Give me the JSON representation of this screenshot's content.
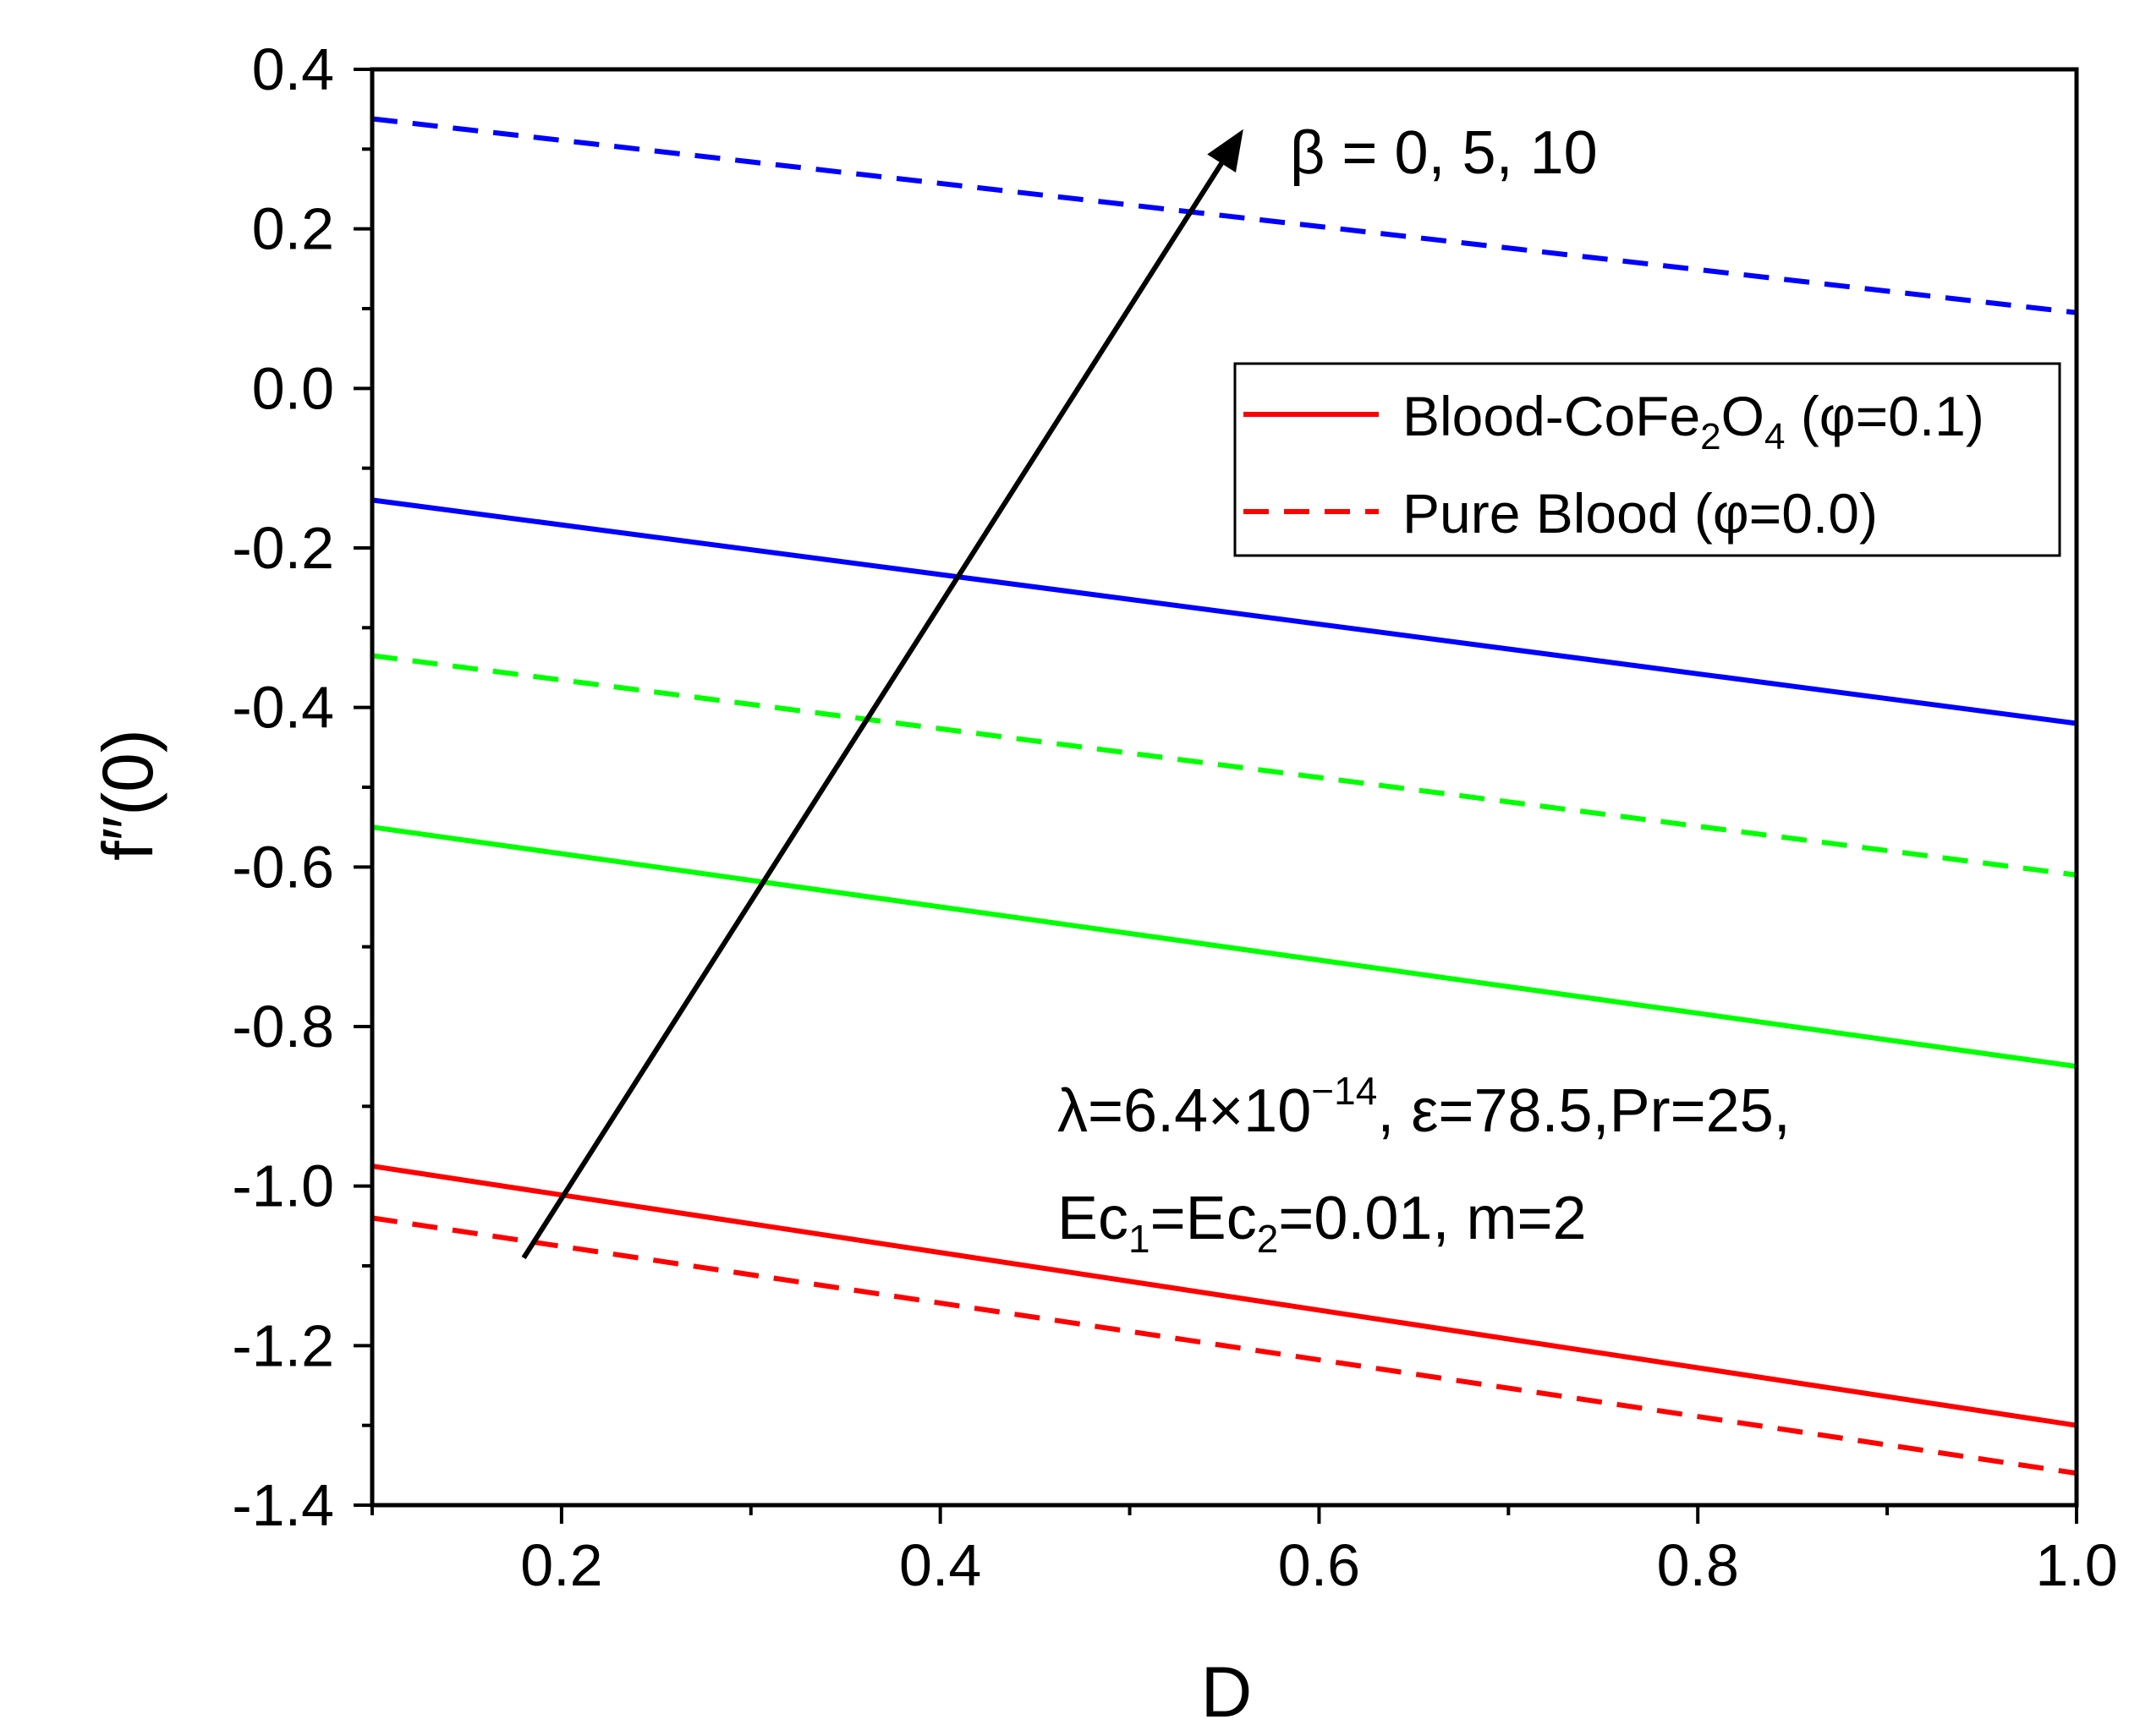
{
  "chart_data": {
    "type": "line",
    "title": "",
    "xlabel": "D",
    "ylabel": "f″(0)",
    "xlim": [
      0.1,
      1.0
    ],
    "ylim": [
      -1.4,
      0.4
    ],
    "xticks": [
      0.2,
      0.4,
      0.6,
      0.8,
      1.0
    ],
    "yticks": [
      0.4,
      0.2,
      0.0,
      -0.2,
      -0.4,
      -0.6,
      -0.8,
      -1.0,
      -1.2,
      -1.4
    ],
    "xtick_labels": [
      "0.2",
      "0.4",
      "0.6",
      "0.8",
      "1.0"
    ],
    "ytick_labels": [
      "0.4",
      "0.2",
      "0.0",
      "-0.2",
      "-0.4",
      "-0.6",
      "-0.8",
      "-1.0",
      "-1.2",
      "-1.4"
    ],
    "series": [
      {
        "name": "Blood-CoFe2O4 (φ=0.1), β=0",
        "color": "#ff0000",
        "dash": false,
        "x": [
          0.1,
          1.0
        ],
        "y": [
          -0.975,
          -1.3
        ]
      },
      {
        "name": "Pure Blood (φ=0.0), β=0",
        "color": "#ff0000",
        "dash": true,
        "x": [
          0.1,
          1.0
        ],
        "y": [
          -1.04,
          -1.36
        ]
      },
      {
        "name": "Blood-CoFe2O4 (φ=0.1), β=5",
        "color": "#00ff00",
        "dash": false,
        "x": [
          0.1,
          1.0
        ],
        "y": [
          -0.55,
          -0.85
        ]
      },
      {
        "name": "Pure Blood (φ=0.0), β=5",
        "color": "#00ff00",
        "dash": true,
        "x": [
          0.1,
          1.0
        ],
        "y": [
          -0.335,
          -0.61
        ]
      },
      {
        "name": "Blood-CoFe2O4 (φ=0.1), β=10",
        "color": "#0000ff",
        "dash": false,
        "x": [
          0.1,
          1.0
        ],
        "y": [
          -0.14,
          -0.42
        ]
      },
      {
        "name": "Pure Blood (φ=0.0), β=10",
        "color": "#0000ff",
        "dash": true,
        "x": [
          0.1,
          1.0
        ],
        "y": [
          0.338,
          0.095
        ]
      }
    ],
    "legend": {
      "position": "upper-right",
      "entries": [
        {
          "label_main": "Blood-CoFe",
          "sub1": "2",
          "mid": "O",
          "sub2": "4",
          "tail": " (φ=0.1)",
          "color": "#ff0000",
          "dash": false
        },
        {
          "label_main": "Pure Blood (φ=0.0)",
          "sub1": "",
          "mid": "",
          "sub2": "",
          "tail": "",
          "color": "#ff0000",
          "dash": true
        }
      ]
    },
    "arrow": {
      "from": [
        0.18,
        -1.09
      ],
      "to": [
        0.56,
        0.325
      ],
      "label": "β = 0, 5, 10"
    },
    "annotation": {
      "line1": "λ=6.4×10",
      "line1_sup": "−14",
      "line1_rest": ", ε=78.5,Pr=25,",
      "line2_a": "Ec",
      "line2_sub1": "1",
      "line2_b": "=Ec",
      "line2_sub2": "2",
      "line2_c": "=0.01, m=2"
    }
  }
}
